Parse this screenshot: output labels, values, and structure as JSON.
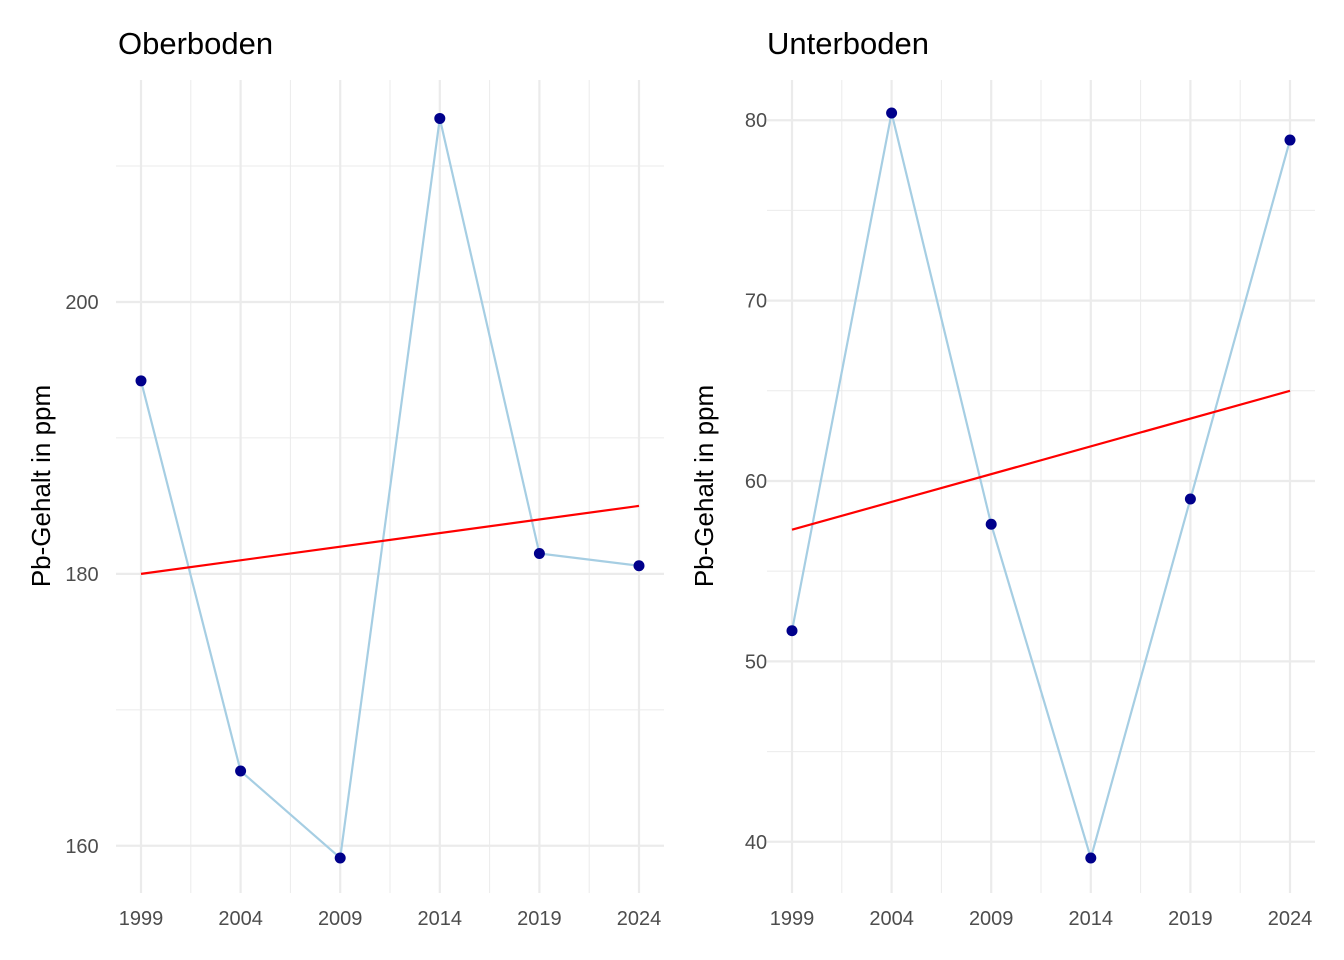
{
  "chart_data": [
    {
      "type": "line",
      "title": "Oberboden",
      "xlabel": "",
      "ylabel": "Pb-Gehalt in ppm",
      "x": [
        1999,
        2004,
        2009,
        2014,
        2019,
        2024
      ],
      "xticks": [
        1999,
        2004,
        2009,
        2014,
        2019,
        2024
      ],
      "xlim": [
        1999,
        2024
      ],
      "yticks": [
        160,
        180,
        200
      ],
      "ylim": [
        159.1,
        213.9
      ],
      "grid": true,
      "series": [
        {
          "values": [
            194.2,
            165.5,
            159.1,
            213.5,
            181.5,
            180.6
          ]
        }
      ],
      "trend": {
        "x": [
          1999,
          2024
        ],
        "y": [
          180.0,
          185.0
        ]
      },
      "colors": {
        "line": "#a6cee3",
        "point": "#00008b",
        "trend": "#ff0000",
        "grid": "#ebebeb"
      }
    },
    {
      "type": "line",
      "title": "Unterboden",
      "xlabel": "",
      "ylabel": "Pb-Gehalt in ppm",
      "x": [
        1999,
        2004,
        2009,
        2014,
        2019,
        2024
      ],
      "xticks": [
        1999,
        2004,
        2009,
        2014,
        2019,
        2024
      ],
      "xlim": [
        1999,
        2024
      ],
      "yticks": [
        40,
        50,
        60,
        70,
        80
      ],
      "ylim": [
        39.1,
        80.4
      ],
      "grid": true,
      "series": [
        {
          "values": [
            51.7,
            80.4,
            57.6,
            39.1,
            59.0,
            78.9
          ]
        }
      ],
      "trend": {
        "x": [
          1999,
          2024
        ],
        "y": [
          57.3,
          65.0
        ]
      },
      "colors": {
        "line": "#a6cee3",
        "point": "#00008b",
        "trend": "#ff0000",
        "grid": "#ebebeb"
      }
    }
  ]
}
